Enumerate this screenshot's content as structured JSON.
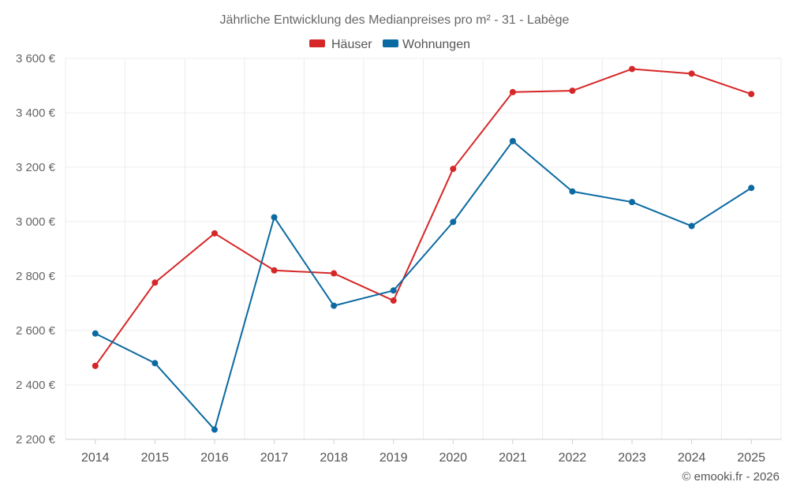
{
  "chart_data": {
    "type": "line",
    "title": "Jährliche Entwicklung des Medianpreises pro m² - 31 - Labège",
    "categories": [
      "2014",
      "2015",
      "2016",
      "2017",
      "2018",
      "2019",
      "2020",
      "2021",
      "2022",
      "2023",
      "2024",
      "2025"
    ],
    "series": [
      {
        "name": "Häuser",
        "color": "#d62728",
        "values": [
          2470,
          2776,
          2957,
          2821,
          2810,
          2710,
          3194,
          3476,
          3481,
          3561,
          3544,
          3469
        ]
      },
      {
        "name": "Wohnungen",
        "color": "#0a6aa1",
        "values": [
          2589,
          2480,
          2236,
          3016,
          2691,
          2747,
          2999,
          3296,
          3111,
          3072,
          2984,
          3124
        ]
      }
    ],
    "ylim": [
      2200,
      3600
    ],
    "yticks": [
      2200,
      2400,
      2600,
      2800,
      3000,
      3200,
      3400,
      3600
    ],
    "ytick_labels": [
      "2 200 €",
      "2 400 €",
      "2 600 €",
      "2 800 €",
      "3 000 €",
      "3 200 €",
      "3 400 €",
      "3 600 €"
    ],
    "xlabel": "",
    "ylabel": "",
    "legend_position": "top-center",
    "grid": true
  },
  "credit": "© emooki.fr - 2026"
}
